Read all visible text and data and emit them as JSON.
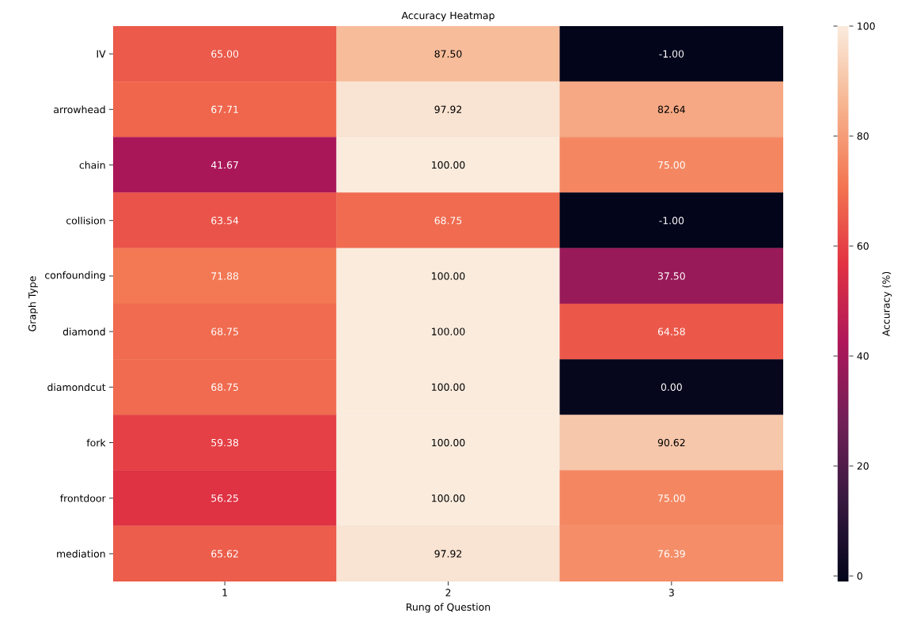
{
  "chart_data": {
    "type": "heatmap",
    "title": "Accuracy Heatmap",
    "xlabel": "Rung of Question",
    "ylabel": "Graph Type",
    "clabel": "Accuracy (%)",
    "categories": [
      "1",
      "2",
      "3"
    ],
    "y_categories": [
      "IV",
      "arrowhead",
      "chain",
      "collision",
      "confounding",
      "diamond",
      "diamondcut",
      "fork",
      "frontdoor",
      "mediation"
    ],
    "cells": [
      [
        65.0,
        87.5,
        -1.0
      ],
      [
        67.71,
        97.92,
        82.64
      ],
      [
        41.67,
        100.0,
        75.0
      ],
      [
        63.54,
        68.75,
        -1.0
      ],
      [
        71.88,
        100.0,
        37.5
      ],
      [
        68.75,
        100.0,
        64.58
      ],
      [
        68.75,
        100.0,
        0.0
      ],
      [
        59.38,
        100.0,
        90.62
      ],
      [
        56.25,
        100.0,
        75.0
      ],
      [
        65.62,
        97.92,
        76.39
      ]
    ],
    "cell_labels": [
      [
        "65.00",
        "87.50",
        "-1.00"
      ],
      [
        "67.71",
        "97.92",
        "82.64"
      ],
      [
        "41.67",
        "100.00",
        "75.00"
      ],
      [
        "63.54",
        "68.75",
        "-1.00"
      ],
      [
        "71.88",
        "100.00",
        "37.50"
      ],
      [
        "68.75",
        "100.00",
        "64.58"
      ],
      [
        "68.75",
        "100.00",
        "0.00"
      ],
      [
        "59.38",
        "100.00",
        "90.62"
      ],
      [
        "56.25",
        "100.00",
        "75.00"
      ],
      [
        "65.62",
        "97.92",
        "76.39"
      ]
    ],
    "clim": [
      -1,
      100
    ],
    "cticks": [
      0,
      20,
      40,
      60,
      80,
      100
    ]
  }
}
